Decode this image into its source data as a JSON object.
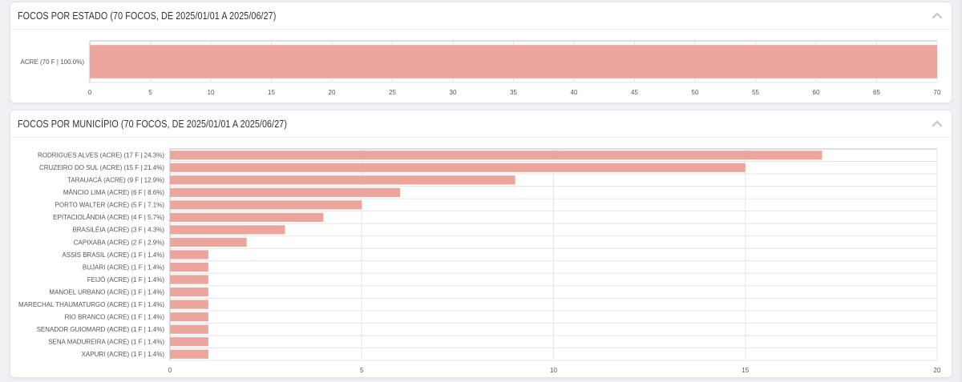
{
  "panels": [
    {
      "title": "FOCOS POR ESTADO (70 FOCOS, DE 2025/01/01 A 2025/06/27)",
      "collapse_icon": "chevron-up-icon"
    },
    {
      "title": "FOCOS POR MUNICÍPIO (70 FOCOS, DE 2025/01/01 A 2025/06/27)",
      "collapse_icon": "chevron-up-icon"
    }
  ],
  "colors": {
    "bar": "#eba59c",
    "grid": "#e6e6e6",
    "axis": "#c8b7c8",
    "tick_text": "#555555"
  },
  "chart_data": [
    {
      "type": "bar",
      "orientation": "horizontal",
      "categories": [
        "ACRE (70 F | 100.0%)"
      ],
      "values": [
        70
      ],
      "xlim": [
        0,
        70
      ],
      "xticks": [
        0,
        5,
        10,
        15,
        20,
        25,
        30,
        35,
        40,
        45,
        50,
        55,
        60,
        65,
        70
      ],
      "grid": true
    },
    {
      "type": "bar",
      "orientation": "horizontal",
      "categories": [
        "RODRIGUES ALVES (ACRE) (17 F | 24.3%)",
        "CRUZEIRO DO SUL (ACRE) (15 F | 21.4%)",
        "TARAUACÁ (ACRE) (9 F | 12.9%)",
        "MÂNCIO LIMA (ACRE) (6 F | 8.6%)",
        "PORTO WALTER (ACRE) (5 F | 7.1%)",
        "EPITACIOLÂNDIA (ACRE) (4 F | 5.7%)",
        "BRASILÉIA (ACRE) (3 F | 4.3%)",
        "CAPIXABA (ACRE) (2 F | 2.9%)",
        "ASSIS BRASIL (ACRE) (1 F | 1.4%)",
        "BUJARI (ACRE) (1 F | 1.4%)",
        "FEIJÓ (ACRE) (1 F | 1.4%)",
        "MANOEL URBANO (ACRE) (1 F | 1.4%)",
        "MARECHAL THAUMATURGO (ACRE) (1 F | 1.4%)",
        "RIO BRANCO (ACRE) (1 F | 1.4%)",
        "SENADOR GUIOMARD (ACRE) (1 F | 1.4%)",
        "SENA MADUREIRA (ACRE) (1 F | 1.4%)",
        "XAPURI (ACRE) (1 F | 1.4%)"
      ],
      "values": [
        17,
        15,
        9,
        6,
        5,
        4,
        3,
        2,
        1,
        1,
        1,
        1,
        1,
        1,
        1,
        1,
        1
      ],
      "xlim": [
        0,
        20
      ],
      "xticks": [
        0,
        5,
        10,
        15,
        20
      ],
      "grid": true
    }
  ]
}
